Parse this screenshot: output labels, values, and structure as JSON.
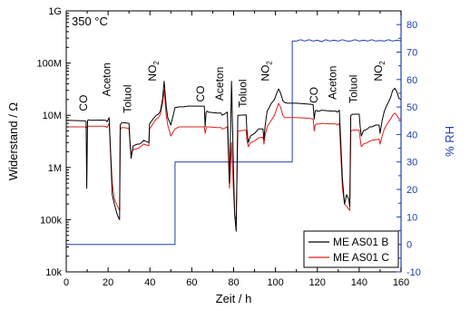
{
  "chart_data": {
    "type": "line",
    "condition_label": "350 °C",
    "x_axis": {
      "label": "Zeit / h",
      "range": [
        0,
        160
      ],
      "ticks": [
        0,
        20,
        40,
        60,
        80,
        100,
        120,
        140,
        160
      ]
    },
    "y_left": {
      "label": "Widerstand / Ω",
      "scale": "log",
      "range": [
        10000,
        1000000000
      ],
      "ticks": [
        10000,
        100000,
        1000000,
        10000000,
        100000000,
        1000000000
      ],
      "tick_labels": [
        "10k",
        "100k",
        "1M",
        "10M",
        "100M",
        "1G"
      ]
    },
    "y_right": {
      "label": "% RH",
      "range": [
        -10,
        85
      ],
      "ticks": [
        -10,
        0,
        10,
        20,
        30,
        40,
        50,
        60,
        70,
        80
      ],
      "color": "#1f3fb0"
    },
    "annotations": [
      {
        "text": "CO",
        "x": 10,
        "y": 12000000
      },
      {
        "text": "Aceton",
        "x": 21,
        "y": 23000000
      },
      {
        "text": "Toluol",
        "x": 31,
        "y": 11000000
      },
      {
        "text": "NO",
        "sub": "2",
        "x": 43,
        "y": 45000000
      },
      {
        "text": "CO",
        "x": 66,
        "y": 18000000
      },
      {
        "text": "Aceton",
        "x": 75,
        "y": 19000000
      },
      {
        "text": "Toluol",
        "x": 86,
        "y": 14000000
      },
      {
        "text": "NO",
        "sub": "2",
        "x": 97,
        "y": 45000000
      },
      {
        "text": "CO",
        "x": 120,
        "y": 17000000
      },
      {
        "text": "Aceton",
        "x": 129,
        "y": 20000000
      },
      {
        "text": "Toluol",
        "x": 139,
        "y": 17000000
      },
      {
        "text": "NO",
        "sub": "2",
        "x": 151,
        "y": 45000000
      }
    ],
    "legend": {
      "placement": "bottom-right"
    },
    "series": [
      {
        "name": "ME AS01 B",
        "color": "#000000",
        "axis": "left",
        "x": [
          0,
          9,
          9.5,
          9.8,
          10.2,
          10.8,
          11.5,
          17,
          19,
          19.5,
          20.5,
          22,
          23,
          24.5,
          25.5,
          25.8,
          26.5,
          27.5,
          30,
          30.5,
          31,
          32,
          34,
          35,
          36,
          37,
          39.5,
          39.8,
          40.5,
          42,
          43,
          44,
          45,
          46,
          46.8,
          47.8,
          48.5,
          50,
          52,
          54,
          56,
          58,
          60,
          62,
          64,
          65,
          66,
          66.4,
          66.8,
          67.2,
          68,
          72,
          74,
          74.5,
          75.5,
          77,
          78,
          79,
          80,
          80.5,
          81.2,
          82,
          86,
          86.3,
          87,
          88,
          90,
          91,
          92,
          94,
          94.5,
          95,
          96,
          97,
          98,
          99.5,
          100.5,
          101.5,
          102.5,
          103.5,
          104.5,
          106,
          108,
          110,
          115,
          118,
          118.5,
          119,
          119.5,
          120,
          121,
          122,
          127,
          129,
          129.5,
          130.5,
          132,
          133,
          134,
          135,
          135.5,
          136,
          137,
          140,
          140.5,
          141,
          142,
          144,
          145,
          146,
          148,
          149.5,
          150,
          151,
          152,
          153,
          154,
          155,
          156,
          157,
          158,
          159,
          160
        ],
        "y": [
          8000000,
          7800000,
          7600000,
          400000,
          8000000,
          8200000,
          8000000,
          8100000,
          8000000,
          7500000,
          9000000,
          300000,
          200000,
          120000,
          100000,
          6500000,
          7200000,
          7200000,
          7000000,
          3000000,
          1500000,
          2600000,
          2800000,
          2800000,
          3000000,
          3300000,
          3000000,
          6800000,
          7500000,
          9000000,
          10000000,
          10500000,
          12000000,
          20000000,
          45000000,
          15000000,
          9000000,
          6500000,
          14000000,
          14500000,
          14500000,
          15000000,
          15000000,
          15000000,
          15000000,
          15000000,
          15000000,
          6000000,
          11000000,
          12000000,
          11500000,
          11000000,
          11000000,
          10000000,
          10500000,
          11500000,
          500000,
          45000000,
          700000,
          120000,
          60000,
          10000000,
          10200000,
          5500000,
          3000000,
          4000000,
          4500000,
          5000000,
          5500000,
          5500000,
          3500000,
          6000000,
          12000000,
          14000000,
          17000000,
          20000000,
          26000000,
          32000000,
          26000000,
          19000000,
          17500000,
          17000000,
          17000000,
          17000000,
          16500000,
          16000000,
          8500000,
          12000000,
          12500000,
          12000000,
          12000000,
          12500000,
          12000000,
          12000000,
          11500000,
          12500000,
          600000,
          200000,
          300000,
          250000,
          180000,
          10000000,
          10500000,
          10500000,
          6000000,
          4000000,
          5000000,
          5500000,
          6000000,
          6000000,
          6500000,
          6500000,
          4500000,
          8000000,
          12000000,
          15000000,
          18000000,
          22000000,
          30000000,
          33000000,
          28000000,
          21000000,
          20000000
        ]
      },
      {
        "name": "ME AS01 C",
        "color": "#e0201b",
        "axis": "left",
        "x": [
          0,
          9,
          9.5,
          10.5,
          11.5,
          17,
          19,
          19.5,
          20.5,
          22,
          23,
          24.5,
          25.5,
          25.8,
          26.5,
          27.5,
          30,
          30.5,
          31,
          32,
          34,
          35,
          36,
          37,
          39.5,
          39.8,
          40.5,
          42,
          43,
          44,
          45,
          46,
          46.8,
          47.8,
          48.5,
          50,
          52,
          54,
          56,
          58,
          60,
          62,
          64,
          65,
          66,
          66.4,
          66.8,
          67.2,
          68,
          72,
          74,
          74.5,
          75.5,
          77,
          78,
          79,
          80,
          80.5,
          81.2,
          82,
          86,
          86.3,
          87,
          88,
          90,
          91,
          92,
          94,
          94.5,
          95,
          96,
          97,
          98,
          99.5,
          100.5,
          101.5,
          102.5,
          103.5,
          104.5,
          106,
          108,
          110,
          115,
          118,
          118.5,
          119,
          119.5,
          120,
          121,
          122,
          127,
          129,
          129.5,
          130.5,
          132,
          133,
          134,
          135,
          135.5,
          136,
          137,
          140,
          140.5,
          141,
          142,
          144,
          145,
          146,
          148,
          149.5,
          150,
          151,
          152,
          153,
          154,
          155,
          156,
          157,
          158,
          159,
          160
        ],
        "y": [
          6000000,
          6000000,
          5800000,
          6200000,
          6200000,
          6200000,
          6100000,
          5800000,
          7000000,
          500000,
          250000,
          180000,
          150000,
          5200000,
          5800000,
          5800000,
          5600000,
          3000000,
          1800000,
          2200000,
          2300000,
          2400000,
          2600000,
          2800000,
          2600000,
          5500000,
          6000000,
          7500000,
          8500000,
          9000000,
          10500000,
          17000000,
          30000000,
          10000000,
          6500000,
          4000000,
          5500000,
          6000000,
          6000000,
          6000000,
          6000000,
          6000000,
          6000000,
          6000000,
          6000000,
          4500000,
          5500000,
          6000000,
          6000000,
          5800000,
          5800000,
          5500000,
          5600000,
          6000000,
          400000,
          3000000,
          300000,
          120000,
          100000,
          5000000,
          5200000,
          3500000,
          2500000,
          3000000,
          3200000,
          3500000,
          3700000,
          3800000,
          2800000,
          4000000,
          6000000,
          7000000,
          8000000,
          10000000,
          13000000,
          17000000,
          14000000,
          10000000,
          9000000,
          9000000,
          9000000,
          9000000,
          8800000,
          8500000,
          5000000,
          6500000,
          6800000,
          6800000,
          6800000,
          7000000,
          6800000,
          6800000,
          6500000,
          7000000,
          400000,
          200000,
          180000,
          160000,
          150000,
          5000000,
          5200000,
          5200000,
          3500000,
          2500000,
          2800000,
          3000000,
          3200000,
          3300000,
          3400000,
          3500000,
          2800000,
          4000000,
          5500000,
          6500000,
          7500000,
          8500000,
          10000000,
          11000000,
          10000000,
          8500000,
          8500000
        ]
      },
      {
        "name": "% RH",
        "color": "#1f3fb0",
        "axis": "right",
        "x": [
          0,
          52,
          52,
          108,
          108,
          110,
          112,
          114,
          116,
          118,
          120,
          122,
          124,
          126,
          128,
          130,
          132,
          134,
          136,
          138,
          140,
          142,
          144,
          146,
          148,
          150,
          152,
          154,
          156,
          158,
          160
        ],
        "y": [
          0,
          0,
          30,
          30,
          74,
          74,
          74.5,
          74,
          74.5,
          74,
          74.3,
          73.8,
          74.5,
          74,
          74.3,
          74,
          74.5,
          74,
          74,
          74.5,
          74,
          74.3,
          74,
          74.5,
          74,
          74.2,
          74,
          74.5,
          74,
          74.3,
          74
        ]
      }
    ]
  }
}
